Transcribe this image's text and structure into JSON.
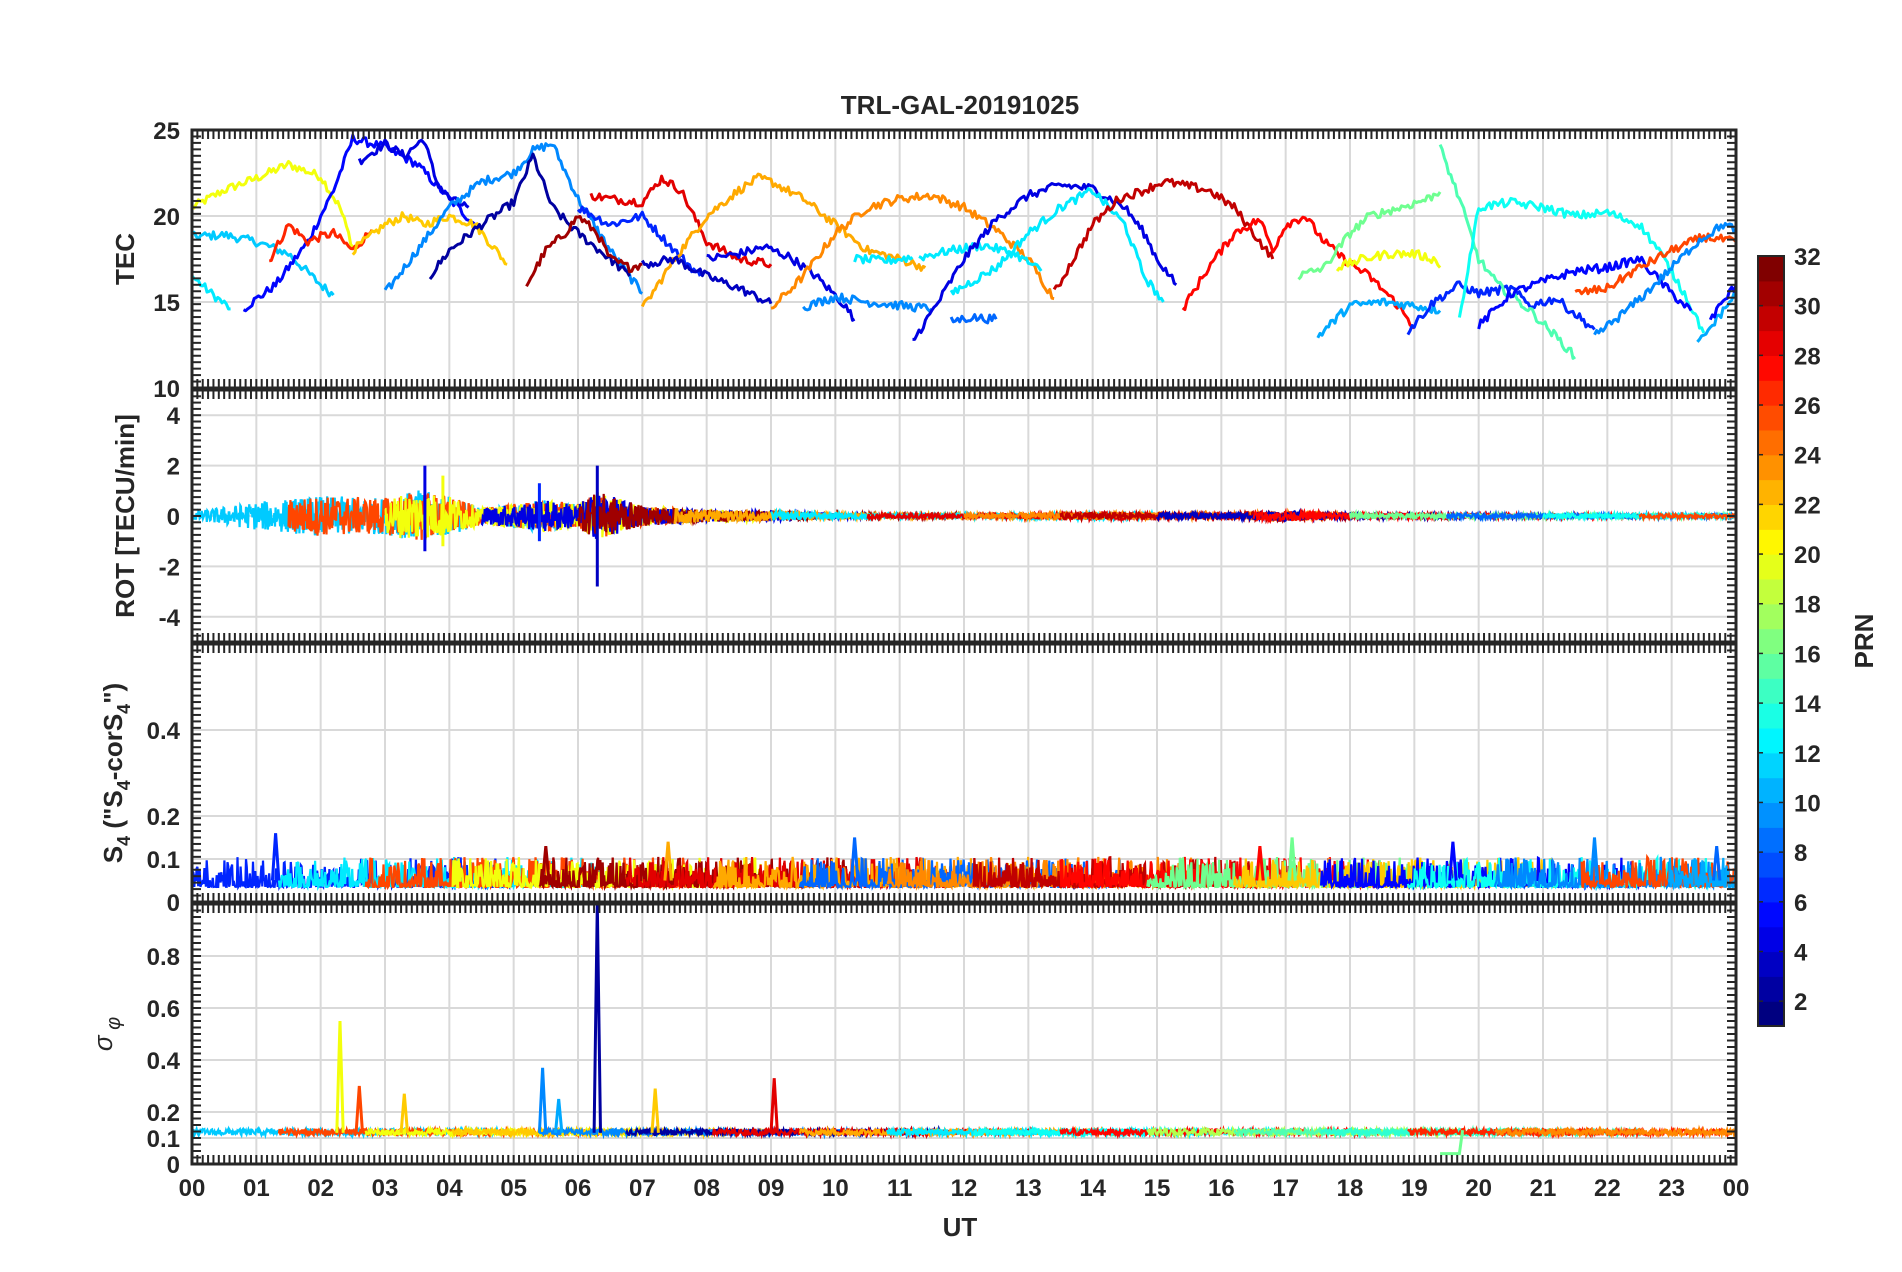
{
  "chart_data": {
    "type": "line",
    "title": "TRL-GAL-20191025",
    "xlabel": "UT",
    "x_tick_labels": [
      "00",
      "01",
      "02",
      "03",
      "04",
      "05",
      "06",
      "07",
      "08",
      "09",
      "10",
      "11",
      "12",
      "13",
      "14",
      "15",
      "16",
      "17",
      "18",
      "19",
      "20",
      "21",
      "22",
      "23",
      "00"
    ],
    "xlim": [
      0,
      24
    ],
    "colorbar": {
      "label": "PRN",
      "range": [
        1,
        32
      ],
      "tick_labels": [
        "2",
        "4",
        "6",
        "8",
        "10",
        "12",
        "14",
        "16",
        "18",
        "20",
        "22",
        "24",
        "26",
        "28",
        "30",
        "32"
      ],
      "colormap": "jet"
    },
    "panels": [
      {
        "name": "tec",
        "ylabel": "TEC",
        "ylim": [
          10,
          25
        ],
        "y_ticks": [
          10,
          15,
          20,
          25
        ],
        "y_tick_labels": [
          "10",
          "15",
          "20",
          "25"
        ],
        "series": [
          {
            "prn": 20,
            "x": [
              0.0,
              0.5,
              1.0,
              1.5,
              2.0,
              2.3,
              2.5
            ],
            "y": [
              20.5,
              21.5,
              22.2,
              23.0,
              22.3,
              20.5,
              18.2
            ]
          },
          {
            "prn": 12,
            "x": [
              0.0,
              0.3,
              0.6
            ],
            "y": [
              16.5,
              15.5,
              14.6
            ]
          },
          {
            "prn": 11,
            "x": [
              0.0,
              0.5,
              1.0,
              1.5,
              2.0,
              2.2
            ],
            "y": [
              18.8,
              18.9,
              18.5,
              17.8,
              16.0,
              15.4
            ]
          },
          {
            "prn": 5,
            "x": [
              0.8,
              1.3,
              1.8,
              2.2,
              2.5,
              3.0,
              3.5,
              4.0,
              4.4
            ],
            "y": [
              14.6,
              16.0,
              18.5,
              21.5,
              24.5,
              24.0,
              23.0,
              21.0,
              19.5
            ]
          },
          {
            "prn": 27,
            "x": [
              1.2,
              1.5,
              1.8,
              2.0,
              2.2,
              2.5,
              2.8
            ],
            "y": [
              17.4,
              19.5,
              18.5,
              18.8,
              19.0,
              18.0,
              19.2
            ]
          },
          {
            "prn": 22,
            "x": [
              2.5,
              3.0,
              3.3,
              3.6,
              4.0,
              4.4,
              4.9
            ],
            "y": [
              18.0,
              19.5,
              20.0,
              19.5,
              20.0,
              19.5,
              17.2
            ]
          },
          {
            "prn": 4,
            "x": [
              2.6,
              3.0,
              3.3,
              3.6,
              3.8,
              4.0,
              4.3
            ],
            "y": [
              23.2,
              24.2,
              23.5,
              24.5,
              22.0,
              21.0,
              20.5
            ]
          },
          {
            "prn": 9,
            "x": [
              3.0,
              3.5,
              4.0,
              4.5,
              5.0,
              5.3,
              5.6,
              6.0,
              6.5,
              6.8,
              7.0
            ],
            "y": [
              15.5,
              18.0,
              20.5,
              22.0,
              22.5,
              23.8,
              24.2,
              21.0,
              18.0,
              16.5,
              15.5
            ]
          },
          {
            "prn": 2,
            "x": [
              3.7,
              4.0,
              4.5,
              5.0,
              5.3,
              5.6,
              6.0,
              6.5,
              6.8
            ],
            "y": [
              16.5,
              18.0,
              19.5,
              20.8,
              23.5,
              20.5,
              19.0,
              17.5,
              16.5
            ]
          },
          {
            "prn": 31,
            "x": [
              5.2,
              5.5,
              5.8,
              6.0,
              6.3,
              6.5,
              6.8,
              7.0
            ],
            "y": [
              16.0,
              18.0,
              19.0,
              20.0,
              19.0,
              17.5,
              17.0,
              17.2
            ]
          },
          {
            "prn": 6,
            "x": [
              6.0,
              6.5,
              7.0,
              7.5,
              7.9
            ],
            "y": [
              20.5,
              19.5,
              20.0,
              18.0,
              16.5
            ]
          },
          {
            "prn": 29,
            "x": [
              6.2,
              6.5,
              7.0,
              7.3,
              7.6,
              8.0,
              8.5,
              9.0
            ],
            "y": [
              21.2,
              21.0,
              20.8,
              22.2,
              21.5,
              18.5,
              17.5,
              17.2
            ]
          },
          {
            "prn": 23,
            "x": [
              7.0,
              7.5,
              8.0,
              8.5,
              8.8,
              9.0,
              9.5,
              10.0,
              10.5,
              11.0,
              11.4
            ],
            "y": [
              14.6,
              17.5,
              20.0,
              21.5,
              22.2,
              22.0,
              21.0,
              19.5,
              18.0,
              17.5,
              17.0
            ]
          },
          {
            "prn": 4,
            "x": [
              8.0,
              8.5,
              8.9,
              9.3,
              9.7,
              10.1,
              10.3
            ],
            "y": [
              17.5,
              17.8,
              18.2,
              17.6,
              16.5,
              15.0,
              14.0
            ]
          },
          {
            "prn": 3,
            "x": [
              7.0,
              7.5,
              8.0,
              8.5,
              9.0
            ],
            "y": [
              17.2,
              17.5,
              16.5,
              15.8,
              14.9
            ]
          },
          {
            "prn": 24,
            "x": [
              9.0,
              9.5,
              10.0,
              10.5,
              11.0,
              11.5,
              12.0,
              12.5,
              13.0,
              13.4
            ],
            "y": [
              14.6,
              16.5,
              19.0,
              20.5,
              21.0,
              21.2,
              20.5,
              19.2,
              17.5,
              15.2
            ]
          },
          {
            "prn": 9,
            "x": [
              9.5,
              10.0,
              10.5,
              11.0,
              11.5
            ],
            "y": [
              14.7,
              15.3,
              15.0,
              14.8,
              14.6
            ]
          },
          {
            "prn": 12,
            "x": [
              10.3,
              10.8,
              11.2
            ],
            "y": [
              17.5,
              17.4,
              17.6
            ]
          },
          {
            "prn": 12,
            "x": [
              11.3,
              11.8,
              12.3,
              12.8,
              13.2
            ],
            "y": [
              17.6,
              18.0,
              18.3,
              17.8,
              16.8
            ]
          },
          {
            "prn": 4,
            "x": [
              11.2,
              11.6,
              12.0,
              12.5,
              13.0,
              13.5,
              14.0,
              14.5,
              14.8,
              15.0,
              15.3
            ],
            "y": [
              12.7,
              15.0,
              17.5,
              19.8,
              21.2,
              21.8,
              21.6,
              20.5,
              19.0,
              17.5,
              16.0
            ]
          },
          {
            "prn": 8,
            "x": [
              11.8,
              12.1,
              12.5
            ],
            "y": [
              13.9,
              14.1,
              14.0
            ]
          },
          {
            "prn": 12,
            "x": [
              11.8,
              12.5,
              13.0,
              13.5,
              14.0,
              14.5,
              14.8,
              15.1
            ],
            "y": [
              15.5,
              17.0,
              19.0,
              20.5,
              21.5,
              19.5,
              16.5,
              15.0
            ]
          },
          {
            "prn": 30,
            "x": [
              13.4,
              13.7,
              14.0,
              14.4,
              14.8,
              15.1,
              15.4,
              15.8,
              16.2,
              16.5,
              16.8
            ],
            "y": [
              15.5,
              17.5,
              19.5,
              21.0,
              21.5,
              22.0,
              21.8,
              21.5,
              20.5,
              19.0,
              17.5
            ]
          },
          {
            "prn": 28,
            "x": [
              15.4,
              15.8,
              16.2,
              16.6,
              16.8,
              17.0,
              17.3,
              17.6,
              17.9,
              18.3,
              18.7,
              19.0
            ],
            "y": [
              14.6,
              17.0,
              19.0,
              19.8,
              18.0,
              19.5,
              20.0,
              18.5,
              17.5,
              16.5,
              15.0,
              13.5
            ]
          },
          {
            "prn": 16,
            "x": [
              17.2,
              17.6,
              18.0,
              18.3,
              18.8,
              19.2,
              19.4
            ],
            "y": [
              16.5,
              17.0,
              19.0,
              20.0,
              20.5,
              21.0,
              21.4
            ]
          },
          {
            "prn": 20,
            "x": [
              17.8,
              18.2,
              18.6,
              19.0,
              19.3,
              19.4
            ],
            "y": [
              17.0,
              17.5,
              17.8,
              17.8,
              17.5,
              17.0
            ]
          },
          {
            "prn": 10,
            "x": [
              17.5,
              18.0,
              18.5,
              19.0,
              19.4
            ],
            "y": [
              13.0,
              14.8,
              15.0,
              14.8,
              14.5
            ]
          },
          {
            "prn": 6,
            "x": [
              18.9,
              19.3,
              19.7,
              20.0,
              20.5,
              20.8,
              21.2,
              21.8
            ],
            "y": [
              13.3,
              15.0,
              16.0,
              15.5,
              15.8,
              14.8,
              15.2,
              13.4
            ]
          },
          {
            "prn": 15,
            "x": [
              19.4,
              19.7,
              20.0,
              20.3,
              20.8,
              21.2,
              21.5
            ],
            "y": [
              24.0,
              21.0,
              17.5,
              16.0,
              14.5,
              13.0,
              11.8
            ]
          },
          {
            "prn": 13,
            "x": [
              19.7,
              20.0,
              20.5,
              21.0,
              21.5,
              22.0,
              22.5,
              22.8,
              23.2,
              23.5
            ],
            "y": [
              14.0,
              20.5,
              20.8,
              20.5,
              20.0,
              20.2,
              19.5,
              18.0,
              15.5,
              13.2
            ]
          },
          {
            "prn": 5,
            "x": [
              20.0,
              20.5,
              21.0,
              21.5,
              22.0,
              22.5,
              23.0,
              23.3
            ],
            "y": [
              13.6,
              15.5,
              16.2,
              16.8,
              17.0,
              17.5,
              15.5,
              14.5
            ]
          },
          {
            "prn": 26,
            "x": [
              21.5,
              22.0,
              22.5,
              23.0,
              23.5,
              24.0
            ],
            "y": [
              15.5,
              15.8,
              17.0,
              18.0,
              18.8,
              18.5
            ]
          },
          {
            "prn": 9,
            "x": [
              21.8,
              22.2,
              22.6,
              23.0,
              23.4,
              23.8,
              24.0
            ],
            "y": [
              13.0,
              14.2,
              15.5,
              17.0,
              18.5,
              19.5,
              19.2
            ]
          },
          {
            "prn": 10,
            "x": [
              23.4,
              23.7,
              24.0
            ],
            "y": [
              12.5,
              14.0,
              15.5
            ]
          },
          {
            "prn": 5,
            "x": [
              23.6,
              24.0
            ],
            "y": [
              14.0,
              16.0
            ]
          }
        ]
      },
      {
        "name": "rot",
        "ylabel": "ROT [TECU/min]",
        "ylim": [
          -5,
          5
        ],
        "y_ticks": [
          -4,
          -2,
          0,
          2,
          4
        ],
        "y_tick_labels": [
          "-4",
          "-2",
          "0",
          "2",
          "4"
        ],
        "envelope": {
          "x": [
            0,
            1,
            2,
            3,
            3.5,
            4,
            4.5,
            5,
            5.5,
            6,
            6.3,
            7,
            8,
            9,
            10,
            12,
            14,
            16,
            17,
            18,
            20,
            22,
            24
          ],
          "amp": [
            0.2,
            0.7,
            1.0,
            0.9,
            1.3,
            1.0,
            0.4,
            0.6,
            0.8,
            0.6,
            1.2,
            0.5,
            0.3,
            0.25,
            0.15,
            0.12,
            0.2,
            0.15,
            0.25,
            0.15,
            0.12,
            0.12,
            0.1
          ]
        },
        "spikes": [
          {
            "prn": 4,
            "x": 3.62,
            "min": -1.4,
            "max": 2.0
          },
          {
            "prn": 20,
            "x": 3.9,
            "min": -1.2,
            "max": 1.6
          },
          {
            "prn": 3,
            "x": 6.3,
            "min": -2.8,
            "max": 2.0
          },
          {
            "prn": 6,
            "x": 5.4,
            "min": -1.0,
            "max": 1.3
          }
        ]
      },
      {
        "name": "s4",
        "ylabel": "S4 (\"S4-corS4\")",
        "ylim": [
          0,
          0.6
        ],
        "y_ticks": [
          0,
          0.1,
          0.2,
          0.4
        ],
        "y_tick_labels": [
          "0",
          "0.1",
          "0.2",
          "0.4"
        ],
        "base_level": 0.05,
        "spikes": [
          {
            "prn": 6,
            "x": 1.3,
            "max": 0.16
          },
          {
            "prn": 31,
            "x": 5.5,
            "max": 0.13
          },
          {
            "prn": 23,
            "x": 7.4,
            "max": 0.14
          },
          {
            "prn": 8,
            "x": 10.3,
            "max": 0.15
          },
          {
            "prn": 28,
            "x": 16.6,
            "max": 0.13
          },
          {
            "prn": 16,
            "x": 17.1,
            "max": 0.15
          },
          {
            "prn": 5,
            "x": 19.6,
            "max": 0.14
          },
          {
            "prn": 9,
            "x": 21.8,
            "max": 0.15
          },
          {
            "prn": 8,
            "x": 23.7,
            "max": 0.13
          }
        ]
      },
      {
        "name": "sigma_phi",
        "ylabel": "σ φ",
        "ylim": [
          0,
          1
        ],
        "y_ticks": [
          0,
          0.1,
          0.2,
          0.4,
          0.6,
          0.8
        ],
        "y_tick_labels": [
          "0",
          "0.1",
          "0.2",
          "0.4",
          "0.6",
          "0.8"
        ],
        "base_level": 0.12,
        "spikes": [
          {
            "prn": 20,
            "x": 2.3,
            "max": 0.55
          },
          {
            "prn": 26,
            "x": 2.6,
            "max": 0.3
          },
          {
            "prn": 22,
            "x": 3.3,
            "max": 0.27
          },
          {
            "prn": 9,
            "x": 5.45,
            "max": 0.37
          },
          {
            "prn": 10,
            "x": 5.7,
            "max": 0.25
          },
          {
            "prn": 2,
            "x": 6.3,
            "max": 1.0
          },
          {
            "prn": 22,
            "x": 7.2,
            "max": 0.29
          },
          {
            "prn": 29,
            "x": 9.05,
            "max": 0.33
          }
        ]
      }
    ]
  }
}
